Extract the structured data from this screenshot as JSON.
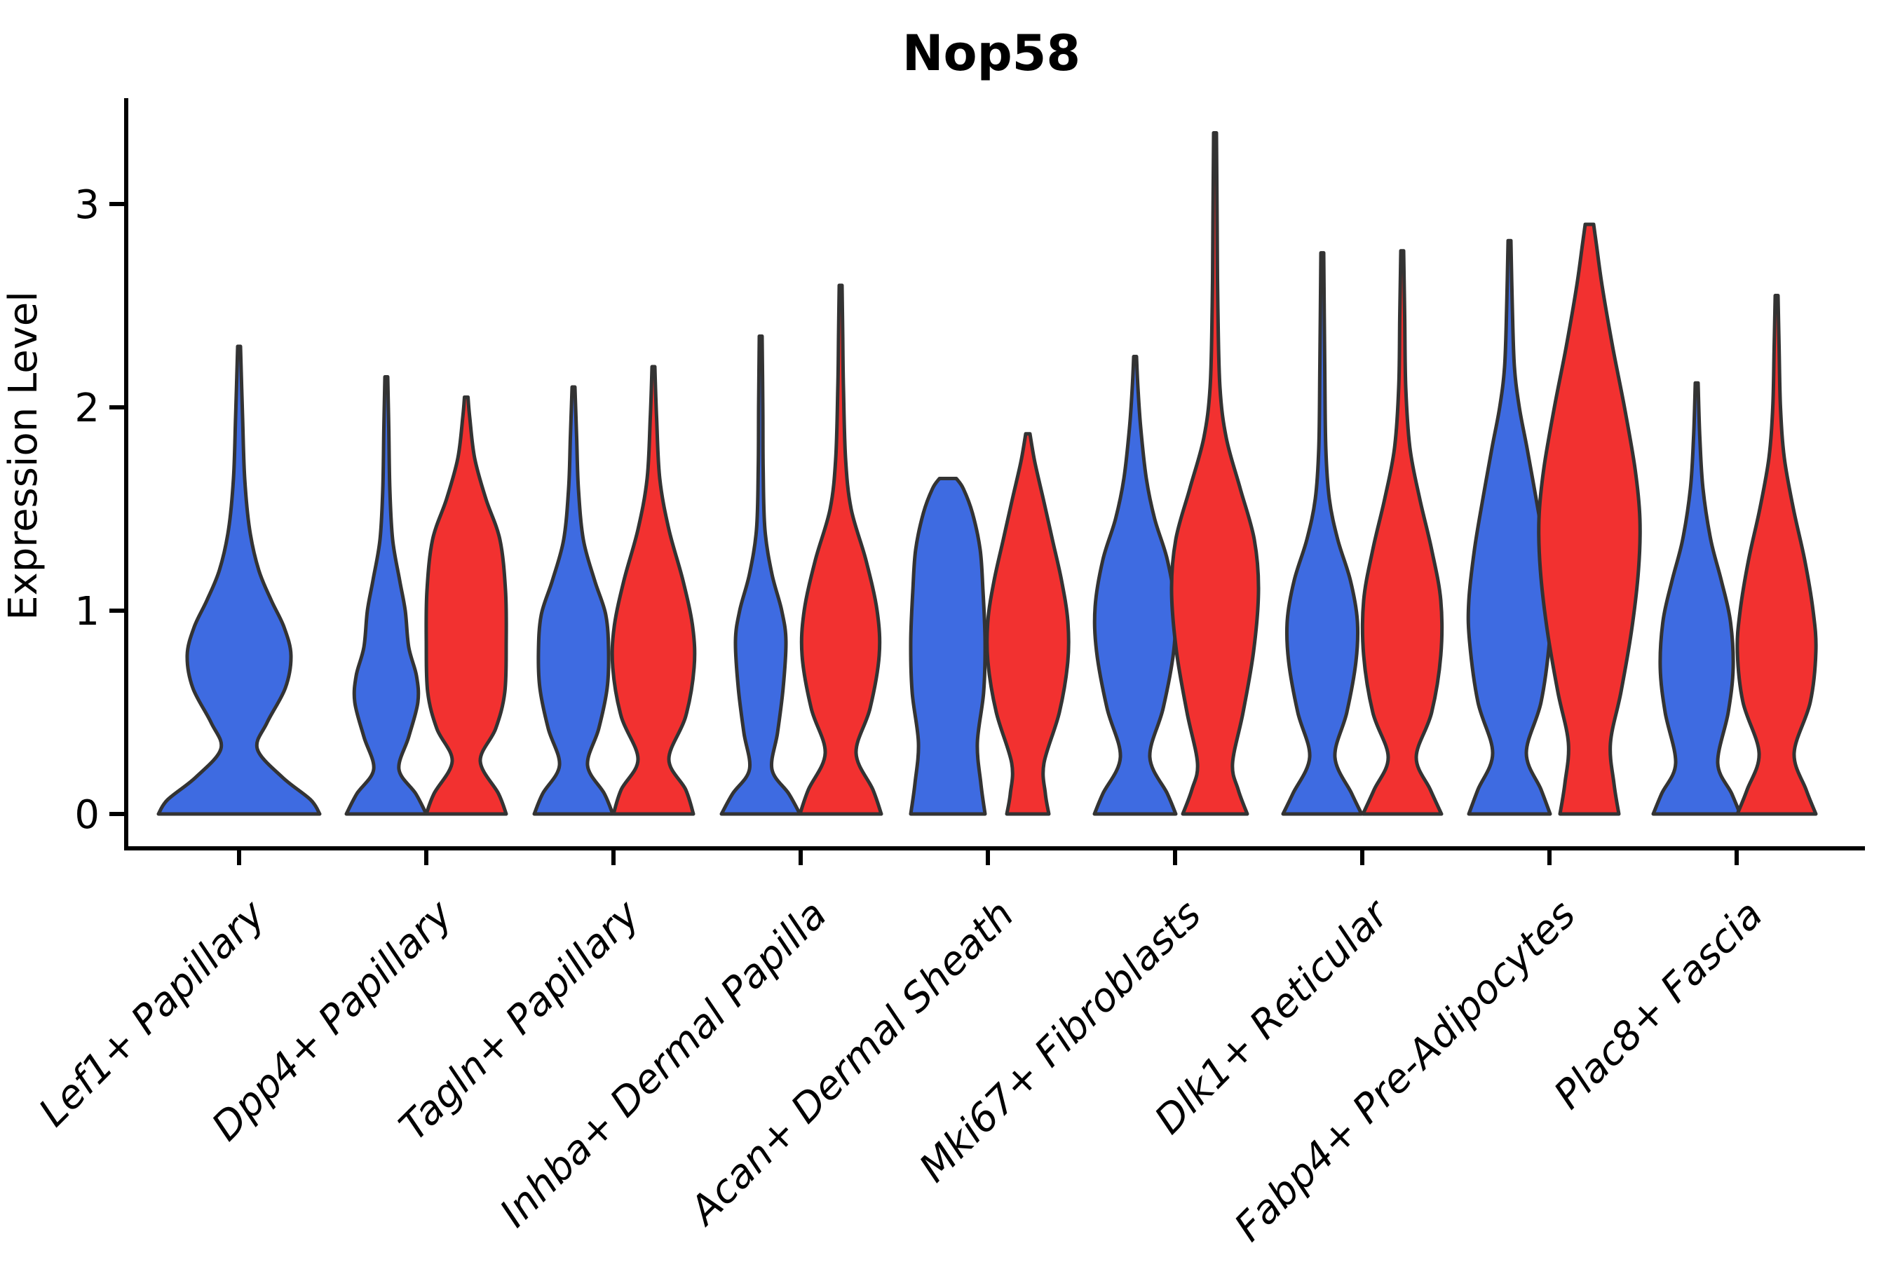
{
  "figure": {
    "title": "Nop58",
    "y_axis_label": "Expression Level"
  },
  "chart_data": {
    "type": "violin",
    "title": "Nop58",
    "xlabel": "",
    "ylabel": "Expression Level",
    "ylim": [
      0,
      3.45
    ],
    "yticks": [
      "0",
      "1",
      "2",
      "3"
    ],
    "grid": false,
    "legend": "none",
    "split_colors": {
      "blue": "#3E6BE1",
      "red": "#F23130"
    },
    "outline_color": "#333333",
    "axis_color": "#000000",
    "categories": [
      "Lef1+ Papillary",
      "Dpp4+ Papillary",
      "Tagln+ Papillary",
      "Inhba+ Dermal Papilla",
      "Acan+ Dermal Sheath",
      "Mki67+ Fibroblasts",
      "Dlk1+ Reticular",
      "Fabp4+ Pre-Adipocytes",
      "Plac8+ Fascia"
    ],
    "violins": [
      {
        "category": "Lef1+ Papillary",
        "split": "single",
        "color": "blue",
        "max": 2.3,
        "profile": [
          [
            0,
            115
          ],
          [
            0.07,
            102
          ],
          [
            0.18,
            62
          ],
          [
            0.32,
            26
          ],
          [
            0.45,
            40
          ],
          [
            0.62,
            66
          ],
          [
            0.78,
            74
          ],
          [
            0.92,
            64
          ],
          [
            1.05,
            46
          ],
          [
            1.2,
            28
          ],
          [
            1.4,
            15
          ],
          [
            1.65,
            8
          ],
          [
            1.95,
            5
          ],
          [
            2.3,
            2
          ]
        ]
      },
      {
        "category": "Dpp4+ Papillary",
        "split": "blue",
        "color": "blue",
        "max": 2.15,
        "profile": [
          [
            0,
            57
          ],
          [
            0.1,
            42
          ],
          [
            0.22,
            18
          ],
          [
            0.38,
            32
          ],
          [
            0.55,
            45
          ],
          [
            0.68,
            43
          ],
          [
            0.82,
            32
          ],
          [
            1.0,
            27
          ],
          [
            1.15,
            19
          ],
          [
            1.35,
            9
          ],
          [
            1.6,
            5
          ],
          [
            1.9,
            3.5
          ],
          [
            2.15,
            2
          ]
        ]
      },
      {
        "category": "Dpp4+ Papillary",
        "split": "red",
        "color": "red",
        "max": 2.05,
        "profile": [
          [
            0,
            57
          ],
          [
            0.1,
            46
          ],
          [
            0.26,
            20
          ],
          [
            0.42,
            42
          ],
          [
            0.6,
            55
          ],
          [
            0.85,
            57
          ],
          [
            1.1,
            56
          ],
          [
            1.35,
            48
          ],
          [
            1.55,
            28
          ],
          [
            1.75,
            12
          ],
          [
            1.95,
            5
          ],
          [
            2.05,
            2.5
          ]
        ]
      },
      {
        "category": "Tagln+ Papillary",
        "split": "blue",
        "color": "blue",
        "max": 2.1,
        "profile": [
          [
            0,
            56
          ],
          [
            0.1,
            44
          ],
          [
            0.24,
            20
          ],
          [
            0.42,
            36
          ],
          [
            0.62,
            48
          ],
          [
            0.8,
            50
          ],
          [
            0.98,
            46
          ],
          [
            1.15,
            30
          ],
          [
            1.35,
            14
          ],
          [
            1.6,
            7
          ],
          [
            1.85,
            4.5
          ],
          [
            2.1,
            2
          ]
        ]
      },
      {
        "category": "Tagln+ Papillary",
        "split": "red",
        "color": "red",
        "max": 2.2,
        "profile": [
          [
            0,
            57
          ],
          [
            0.12,
            46
          ],
          [
            0.27,
            22
          ],
          [
            0.48,
            46
          ],
          [
            0.72,
            58
          ],
          [
            0.92,
            56
          ],
          [
            1.15,
            42
          ],
          [
            1.4,
            22
          ],
          [
            1.65,
            9
          ],
          [
            1.95,
            4.5
          ],
          [
            2.2,
            2
          ]
        ]
      },
      {
        "category": "Inhba+ Dermal Papilla",
        "split": "blue",
        "color": "blue",
        "max": 2.35,
        "profile": [
          [
            0,
            56
          ],
          [
            0.1,
            40
          ],
          [
            0.22,
            16
          ],
          [
            0.4,
            24
          ],
          [
            0.62,
            32
          ],
          [
            0.85,
            36
          ],
          [
            1.0,
            30
          ],
          [
            1.18,
            16
          ],
          [
            1.4,
            6
          ],
          [
            1.7,
            3.5
          ],
          [
            2.0,
            3
          ],
          [
            2.35,
            2
          ]
        ]
      },
      {
        "category": "Inhba+ Dermal Papilla",
        "split": "red",
        "color": "red",
        "max": 2.6,
        "profile": [
          [
            0,
            58
          ],
          [
            0.12,
            46
          ],
          [
            0.3,
            22
          ],
          [
            0.52,
            42
          ],
          [
            0.78,
            55
          ],
          [
            1.0,
            52
          ],
          [
            1.25,
            36
          ],
          [
            1.5,
            15
          ],
          [
            1.75,
            7
          ],
          [
            2.1,
            4
          ],
          [
            2.35,
            3
          ],
          [
            2.6,
            2
          ]
        ]
      },
      {
        "category": "Acan+ Dermal Sheath",
        "split": "blue",
        "color": "blue",
        "max": 1.65,
        "flat_top": true,
        "profile": [
          [
            0,
            53
          ],
          [
            0.15,
            47
          ],
          [
            0.35,
            42
          ],
          [
            0.6,
            51
          ],
          [
            0.85,
            53
          ],
          [
            1.1,
            50
          ],
          [
            1.3,
            46
          ],
          [
            1.48,
            35
          ],
          [
            1.6,
            22
          ],
          [
            1.65,
            12
          ]
        ]
      },
      {
        "category": "Acan+ Dermal Sheath",
        "split": "red",
        "color": "red",
        "max": 1.87,
        "profile": [
          [
            0,
            30
          ],
          [
            0.1,
            25
          ],
          [
            0.25,
            23
          ],
          [
            0.5,
            45
          ],
          [
            0.75,
            57
          ],
          [
            0.95,
            57
          ],
          [
            1.15,
            48
          ],
          [
            1.35,
            35
          ],
          [
            1.55,
            22
          ],
          [
            1.73,
            10
          ],
          [
            1.87,
            3
          ]
        ]
      },
      {
        "category": "Mki67+ Fibroblasts",
        "split": "blue",
        "color": "blue",
        "max": 2.25,
        "profile": [
          [
            0,
            58
          ],
          [
            0.1,
            46
          ],
          [
            0.28,
            21
          ],
          [
            0.52,
            40
          ],
          [
            0.8,
            55
          ],
          [
            1.02,
            57
          ],
          [
            1.25,
            46
          ],
          [
            1.45,
            28
          ],
          [
            1.65,
            16
          ],
          [
            1.9,
            8
          ],
          [
            2.1,
            4
          ],
          [
            2.25,
            2
          ]
        ]
      },
      {
        "category": "Mki67+ Fibroblasts",
        "split": "red",
        "color": "red",
        "max": 3.35,
        "profile": [
          [
            0,
            46
          ],
          [
            0.12,
            33
          ],
          [
            0.25,
            25
          ],
          [
            0.5,
            40
          ],
          [
            0.8,
            55
          ],
          [
            1.1,
            62
          ],
          [
            1.35,
            56
          ],
          [
            1.6,
            36
          ],
          [
            1.85,
            16
          ],
          [
            2.1,
            7
          ],
          [
            2.5,
            4
          ],
          [
            2.9,
            3
          ],
          [
            3.35,
            2
          ]
        ]
      },
      {
        "category": "Dlk1+ Reticular",
        "split": "blue",
        "color": "blue",
        "max": 2.76,
        "profile": [
          [
            0,
            56
          ],
          [
            0.1,
            42
          ],
          [
            0.28,
            18
          ],
          [
            0.5,
            35
          ],
          [
            0.75,
            48
          ],
          [
            0.95,
            50
          ],
          [
            1.15,
            40
          ],
          [
            1.35,
            22
          ],
          [
            1.55,
            10
          ],
          [
            1.8,
            5
          ],
          [
            2.2,
            3.5
          ],
          [
            2.76,
            2
          ]
        ]
      },
      {
        "category": "Dlk1+ Reticular",
        "split": "red",
        "color": "red",
        "max": 2.77,
        "profile": [
          [
            0,
            56
          ],
          [
            0.12,
            40
          ],
          [
            0.28,
            20
          ],
          [
            0.5,
            42
          ],
          [
            0.78,
            55
          ],
          [
            1.05,
            55
          ],
          [
            1.3,
            42
          ],
          [
            1.55,
            25
          ],
          [
            1.8,
            11
          ],
          [
            2.1,
            5
          ],
          [
            2.45,
            3.5
          ],
          [
            2.77,
            2
          ]
        ]
      },
      {
        "category": "Fabp4+ Pre-Adipocytes",
        "split": "blue",
        "color": "blue",
        "max": 2.82,
        "profile": [
          [
            0,
            58
          ],
          [
            0.12,
            45
          ],
          [
            0.3,
            24
          ],
          [
            0.55,
            45
          ],
          [
            0.85,
            57
          ],
          [
            1.05,
            58
          ],
          [
            1.3,
            50
          ],
          [
            1.55,
            38
          ],
          [
            1.8,
            25
          ],
          [
            2.0,
            14
          ],
          [
            2.2,
            7
          ],
          [
            2.5,
            4
          ],
          [
            2.82,
            2
          ]
        ]
      },
      {
        "category": "Fabp4+ Pre-Adipocytes",
        "split": "red",
        "color": "red",
        "max": 2.9,
        "flat_top": true,
        "profile": [
          [
            0,
            42
          ],
          [
            0.15,
            35
          ],
          [
            0.35,
            30
          ],
          [
            0.6,
            45
          ],
          [
            0.9,
            60
          ],
          [
            1.2,
            70
          ],
          [
            1.45,
            72
          ],
          [
            1.7,
            65
          ],
          [
            2.0,
            50
          ],
          [
            2.3,
            33
          ],
          [
            2.6,
            18
          ],
          [
            2.8,
            10
          ],
          [
            2.9,
            6
          ]
        ]
      },
      {
        "category": "Plac8+ Fascia",
        "split": "blue",
        "color": "blue",
        "max": 2.12,
        "profile": [
          [
            0,
            62
          ],
          [
            0.1,
            50
          ],
          [
            0.25,
            30
          ],
          [
            0.5,
            45
          ],
          [
            0.72,
            52
          ],
          [
            0.95,
            48
          ],
          [
            1.15,
            35
          ],
          [
            1.35,
            20
          ],
          [
            1.6,
            9
          ],
          [
            1.85,
            4.5
          ],
          [
            2.12,
            2
          ]
        ]
      },
      {
        "category": "Plac8+ Fascia",
        "split": "red",
        "color": "red",
        "max": 2.55,
        "profile": [
          [
            0,
            56
          ],
          [
            0.12,
            42
          ],
          [
            0.3,
            25
          ],
          [
            0.55,
            48
          ],
          [
            0.8,
            56
          ],
          [
            1.0,
            52
          ],
          [
            1.25,
            40
          ],
          [
            1.5,
            24
          ],
          [
            1.75,
            11
          ],
          [
            2.0,
            5.5
          ],
          [
            2.3,
            3.5
          ],
          [
            2.55,
            2
          ]
        ]
      }
    ]
  }
}
